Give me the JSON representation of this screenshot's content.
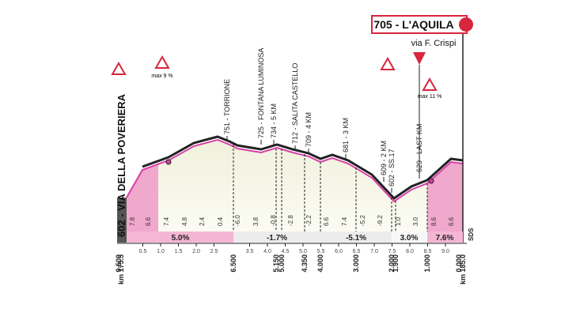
{
  "header": {
    "title": "705 - L'AQUILA",
    "subtitle": "via F. Crispi"
  },
  "start": "602 - VIA DELLA POVERIERA",
  "climbs": [
    "max 9 %",
    "max 11 %"
  ],
  "waypoints": [
    "751 - TORRIONE",
    "725 - FONTANA LUMINOSA",
    "734 - 5 KM",
    "712 - SALITA CASTELLO",
    "709 - 4 KM",
    "681 - 3 KM",
    "609 - 2 KM",
    "602 - SS.17",
    "629 - LAST KM"
  ],
  "gradients": [
    "7.8",
    "6.6",
    "7.4",
    "4.8",
    "2.4",
    "0.4",
    "-6.0",
    "3.8",
    "-0.8",
    "-2.8",
    "-2.2",
    "6.6",
    "7.4",
    "-5.2",
    "-9.2",
    "1.0",
    "3.0",
    "8.6",
    "6.6"
  ],
  "segments": [
    "5.0%",
    "-1.7%",
    "-5.1%",
    "3.0%",
    "7.6%"
  ],
  "km_marks": [
    "9.500",
    "6.500",
    "5.150",
    "5.000",
    "4.350",
    "4.000",
    "3.000",
    "2.000",
    "1.900",
    "1.000",
    "0.000"
  ],
  "km_ticks": [
    "0.5",
    "1.0",
    "1.5",
    "2.0",
    "2.5",
    "3.5",
    "4.0",
    "4.5",
    "5.0",
    "5.5",
    "6.0",
    "6.5",
    "7.0",
    "7.5",
    "8.0",
    "8.5",
    "9.0"
  ],
  "start_km": "km 175.5",
  "finish_km": "km 185.0",
  "sds": "SDS"
}
